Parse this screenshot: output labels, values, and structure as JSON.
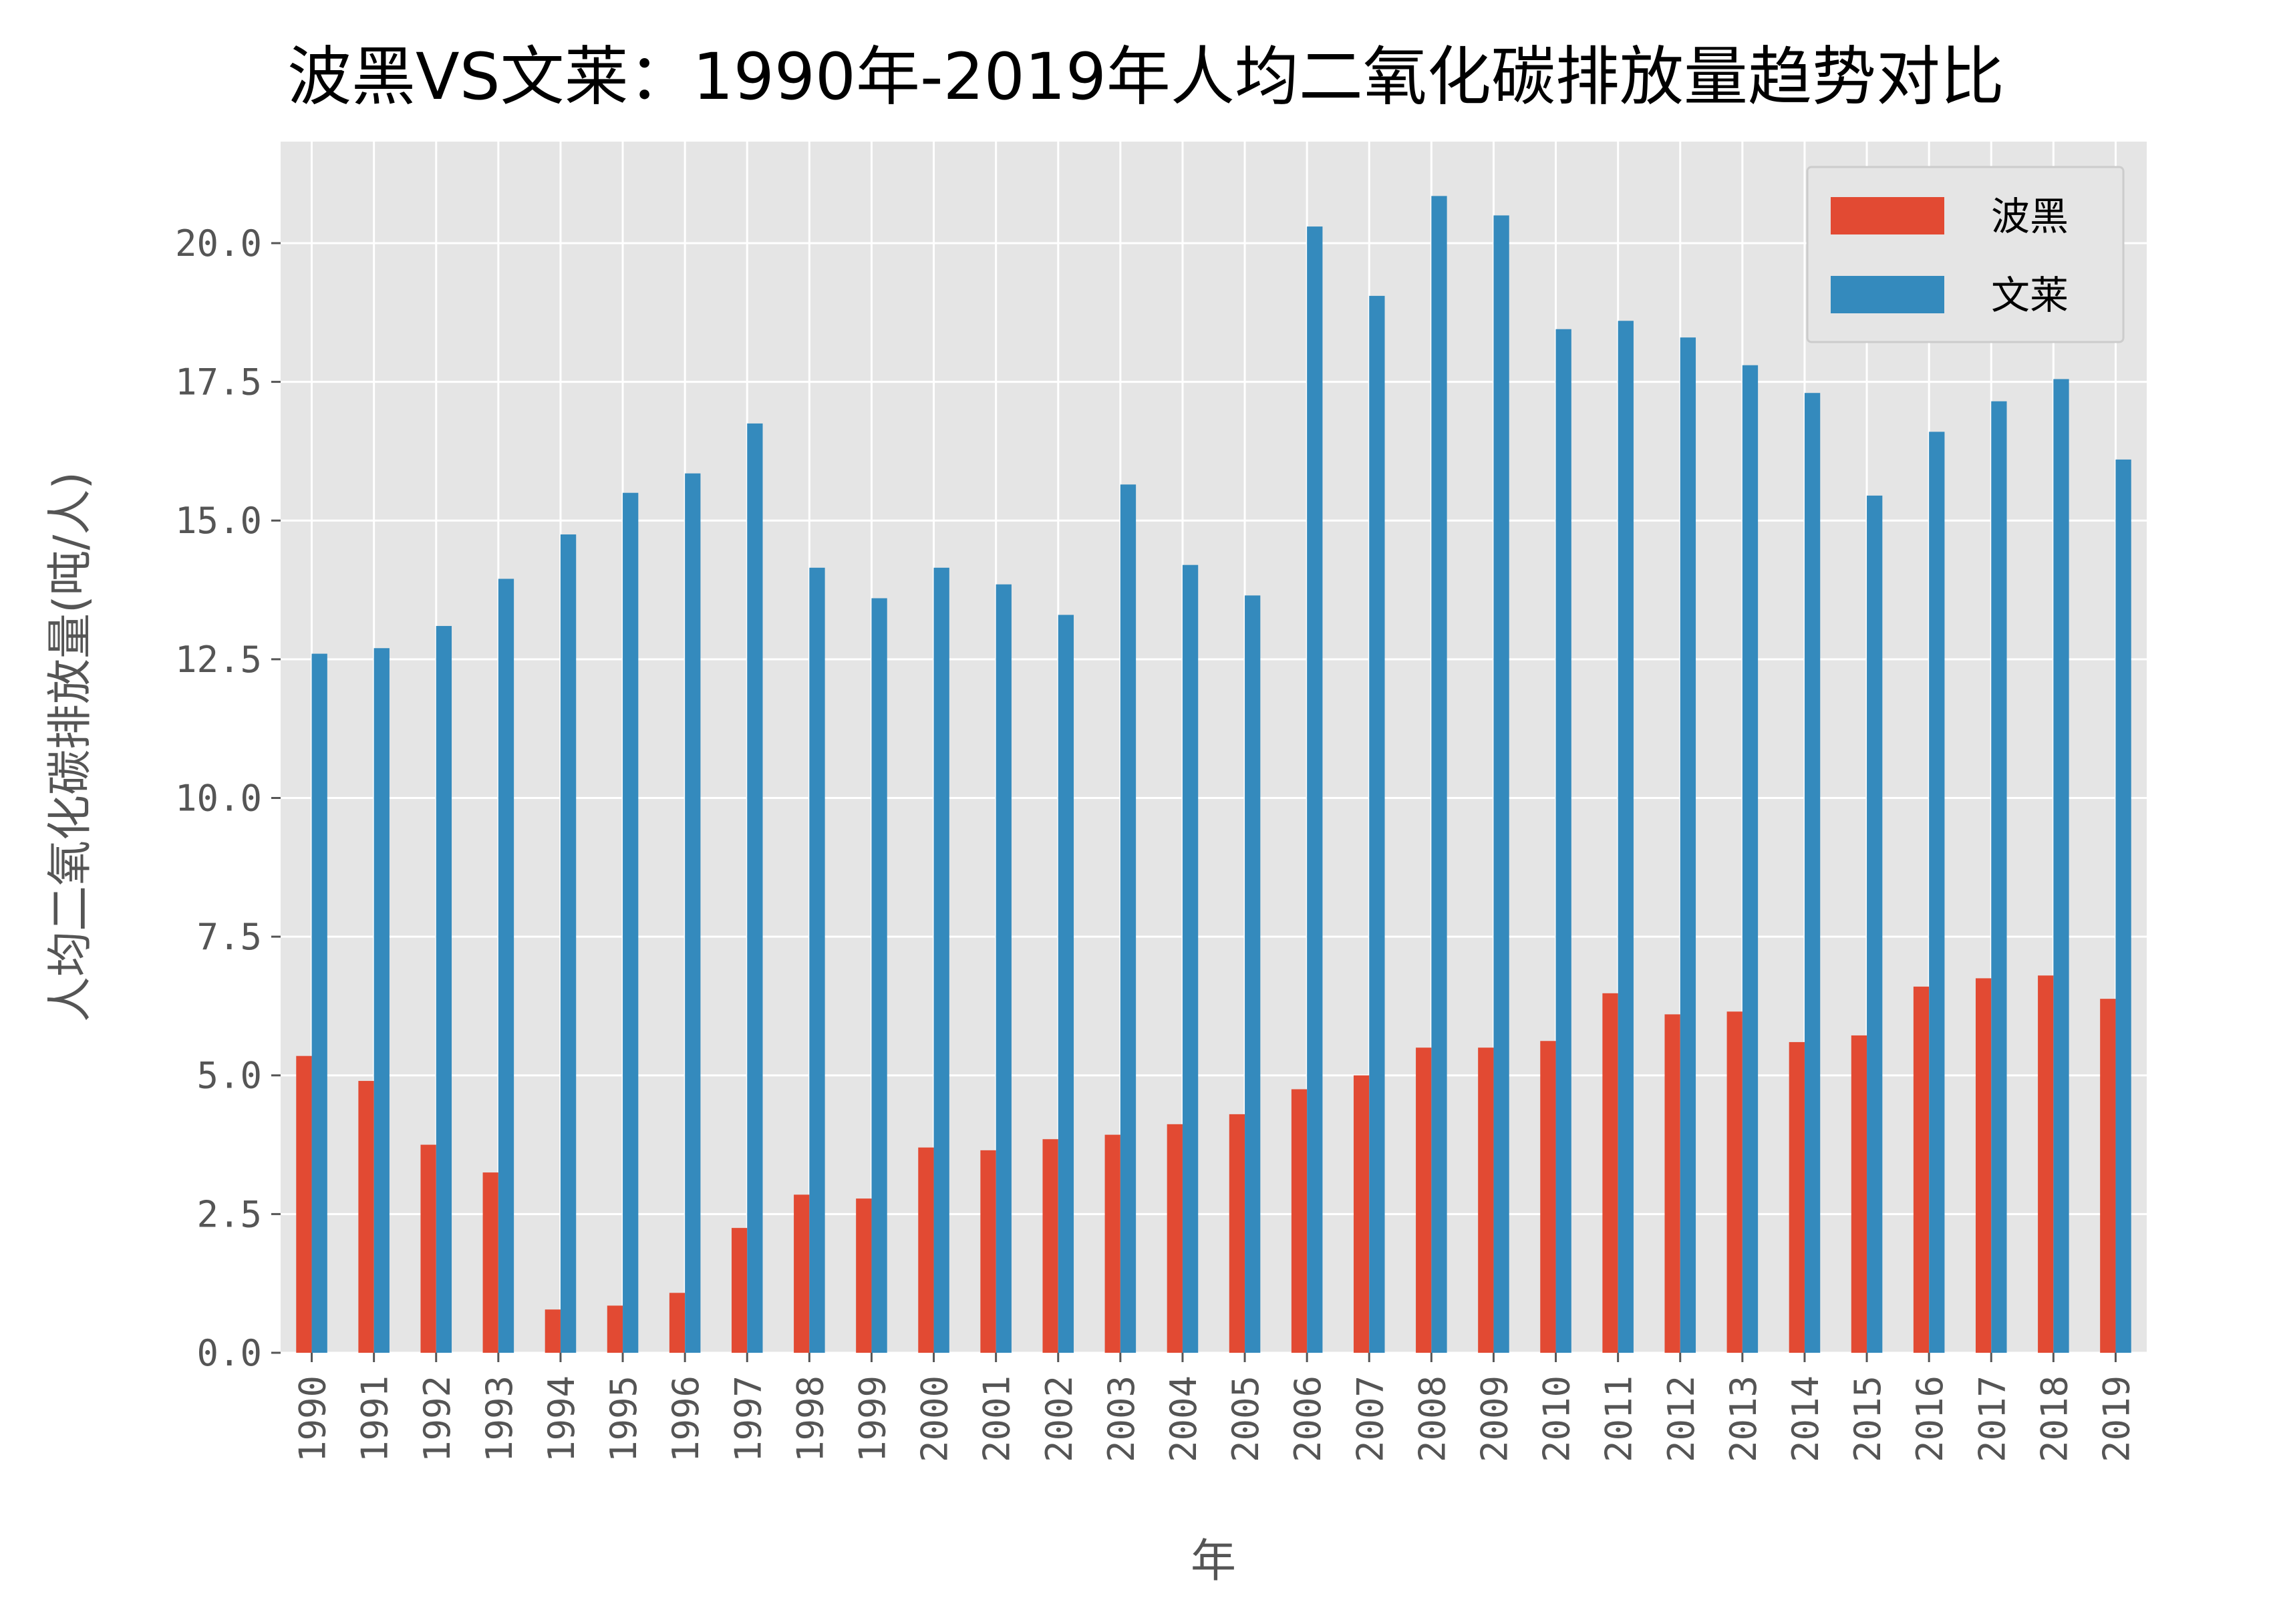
{
  "chart_data": {
    "type": "bar",
    "title": "波黑VS文莱：1990年-2019年人均二氧化碳排放量趋势对比",
    "xlabel": "年",
    "ylabel": "人均二氧化碳排放量(吨/人)",
    "categories": [
      "1990",
      "1991",
      "1992",
      "1993",
      "1994",
      "1995",
      "1996",
      "1997",
      "1998",
      "1999",
      "2000",
      "2001",
      "2002",
      "2003",
      "2004",
      "2005",
      "2006",
      "2007",
      "2008",
      "2009",
      "2010",
      "2011",
      "2012",
      "2013",
      "2014",
      "2015",
      "2016",
      "2017",
      "2018",
      "2019"
    ],
    "series": [
      {
        "name": "波黑",
        "color": "#E24A33",
        "values": [
          5.35,
          4.9,
          3.75,
          3.25,
          0.78,
          0.85,
          1.08,
          2.25,
          2.85,
          2.78,
          3.7,
          3.65,
          3.85,
          3.93,
          4.12,
          4.3,
          4.75,
          5.0,
          5.5,
          5.5,
          5.62,
          6.48,
          6.1,
          6.15,
          5.6,
          5.72,
          6.6,
          6.75,
          6.8,
          6.38
        ]
      },
      {
        "name": "文莱",
        "color": "#348ABD",
        "values": [
          12.6,
          12.7,
          13.1,
          13.95,
          14.75,
          15.5,
          15.85,
          16.75,
          14.15,
          13.6,
          14.15,
          13.85,
          13.3,
          15.65,
          14.2,
          13.65,
          20.3,
          19.05,
          20.85,
          20.5,
          18.45,
          18.6,
          18.3,
          17.8,
          17.3,
          15.45,
          16.6,
          17.15,
          17.55,
          16.1
        ]
      }
    ],
    "ylim": [
      0,
      21.83
    ],
    "yticks": [
      "0.0",
      "2.5",
      "5.0",
      "7.5",
      "10.0",
      "12.5",
      "15.0",
      "17.5",
      "20.0"
    ],
    "grid": true,
    "legend_position": "top-right",
    "background": "#E5E5E5"
  }
}
